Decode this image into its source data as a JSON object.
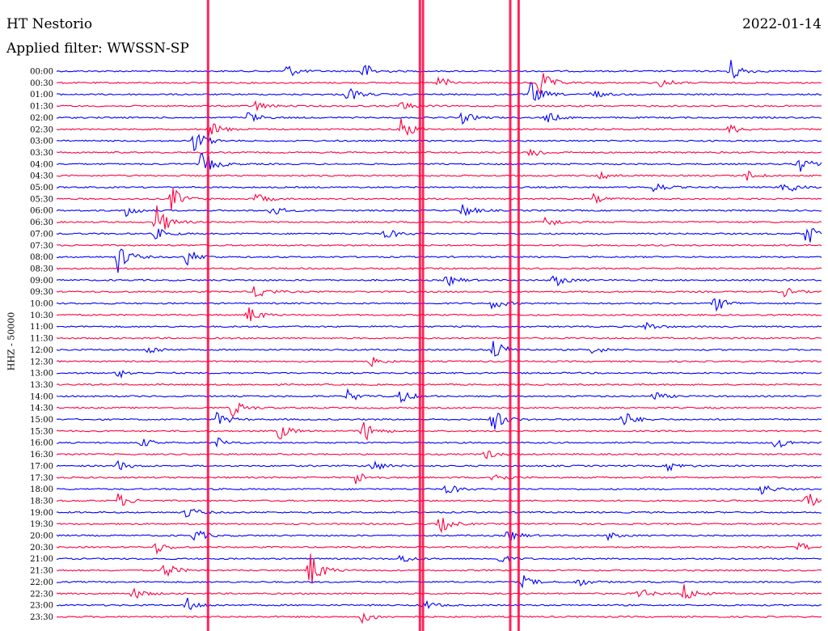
{
  "header": {
    "station": "HT Nestorio",
    "date": "2022-01-14",
    "filter": "Applied filter: WWSSN-SP"
  },
  "chart_data": {
    "type": "line",
    "title": "HT Nestorio",
    "subtitle": "Applied filter: WWSSN-SP",
    "ylabel": "HHZ - 50000",
    "rows": [
      "00:00",
      "00:30",
      "01:00",
      "01:30",
      "02:00",
      "02:30",
      "03:00",
      "03:30",
      "04:00",
      "04:30",
      "05:00",
      "05:30",
      "06:00",
      "06:30",
      "07:00",
      "07:30",
      "08:00",
      "08:30",
      "09:00",
      "09:30",
      "10:00",
      "10:30",
      "11:00",
      "11:30",
      "12:00",
      "12:30",
      "13:00",
      "13:30",
      "14:00",
      "14:30",
      "15:00",
      "15:30",
      "16:00",
      "16:30",
      "17:00",
      "17:30",
      "18:00",
      "18:30",
      "19:00",
      "19:30",
      "20:00",
      "20:30",
      "21:00",
      "21:30",
      "22:00",
      "22:30",
      "23:00",
      "23:30"
    ],
    "colors": {
      "odd": "#0000ff",
      "even": "#ff0040"
    },
    "events": [
      {
        "row": 0,
        "t": 0.3,
        "amp": 1.2
      },
      {
        "row": 0,
        "t": 0.4,
        "amp": 1.5
      },
      {
        "row": 0,
        "t": 0.88,
        "amp": 2.0
      },
      {
        "row": 1,
        "t": 0.5,
        "amp": 1.2
      },
      {
        "row": 1,
        "t": 0.63,
        "amp": 2.5
      },
      {
        "row": 1,
        "t": 0.79,
        "amp": 0.8
      },
      {
        "row": 2,
        "t": 0.38,
        "amp": 1.4
      },
      {
        "row": 2,
        "t": 0.62,
        "amp": 2.0
      },
      {
        "row": 2,
        "t": 0.7,
        "amp": 0.7
      },
      {
        "row": 3,
        "t": 0.26,
        "amp": 0.8
      },
      {
        "row": 3,
        "t": 0.45,
        "amp": 0.8
      },
      {
        "row": 4,
        "t": 0.25,
        "amp": 1.0
      },
      {
        "row": 4,
        "t": 0.53,
        "amp": 1.0
      },
      {
        "row": 4,
        "t": 0.64,
        "amp": 1.0
      },
      {
        "row": 5,
        "t": 0.2,
        "amp": 1.5
      },
      {
        "row": 5,
        "t": 0.45,
        "amp": 2.0
      },
      {
        "row": 5,
        "t": 0.88,
        "amp": 0.8
      },
      {
        "row": 6,
        "t": 0.18,
        "amp": 2.0
      },
      {
        "row": 7,
        "t": 0.62,
        "amp": 1.0
      },
      {
        "row": 8,
        "t": 0.19,
        "amp": 2.5
      },
      {
        "row": 8,
        "t": 0.97,
        "amp": 1.5
      },
      {
        "row": 9,
        "t": 0.71,
        "amp": 0.8
      },
      {
        "row": 9,
        "t": 0.9,
        "amp": 1.0
      },
      {
        "row": 10,
        "t": 0.78,
        "amp": 1.0
      },
      {
        "row": 10,
        "t": 0.95,
        "amp": 1.5
      },
      {
        "row": 11,
        "t": 0.15,
        "amp": 2.0
      },
      {
        "row": 11,
        "t": 0.26,
        "amp": 1.0
      },
      {
        "row": 11,
        "t": 0.7,
        "amp": 0.8
      },
      {
        "row": 12,
        "t": 0.09,
        "amp": 1.0
      },
      {
        "row": 12,
        "t": 0.28,
        "amp": 1.0
      },
      {
        "row": 12,
        "t": 0.53,
        "amp": 1.2
      },
      {
        "row": 13,
        "t": 0.13,
        "amp": 3.0
      },
      {
        "row": 13,
        "t": 0.64,
        "amp": 1.0
      },
      {
        "row": 14,
        "t": 0.13,
        "amp": 1.0
      },
      {
        "row": 14,
        "t": 0.43,
        "amp": 1.0
      },
      {
        "row": 14,
        "t": 0.98,
        "amp": 2.0
      },
      {
        "row": 16,
        "t": 0.08,
        "amp": 2.5
      },
      {
        "row": 16,
        "t": 0.17,
        "amp": 1.5
      },
      {
        "row": 18,
        "t": 0.51,
        "amp": 1.0
      },
      {
        "row": 18,
        "t": 0.65,
        "amp": 1.2
      },
      {
        "row": 19,
        "t": 0.26,
        "amp": 1.5
      },
      {
        "row": 19,
        "t": 0.95,
        "amp": 0.8
      },
      {
        "row": 20,
        "t": 0.57,
        "amp": 1.0
      },
      {
        "row": 20,
        "t": 0.86,
        "amp": 1.5
      },
      {
        "row": 21,
        "t": 0.25,
        "amp": 1.5
      },
      {
        "row": 22,
        "t": 0.77,
        "amp": 0.8
      },
      {
        "row": 24,
        "t": 0.12,
        "amp": 0.8
      },
      {
        "row": 24,
        "t": 0.57,
        "amp": 2.0
      },
      {
        "row": 24,
        "t": 0.7,
        "amp": 0.7
      },
      {
        "row": 25,
        "t": 0.41,
        "amp": 0.8
      },
      {
        "row": 26,
        "t": 0.08,
        "amp": 0.8
      },
      {
        "row": 28,
        "t": 0.38,
        "amp": 1.0
      },
      {
        "row": 28,
        "t": 0.78,
        "amp": 0.8
      },
      {
        "row": 28,
        "t": 0.45,
        "amp": 1.2
      },
      {
        "row": 29,
        "t": 0.23,
        "amp": 1.5
      },
      {
        "row": 30,
        "t": 0.21,
        "amp": 1.2
      },
      {
        "row": 30,
        "t": 0.57,
        "amp": 2.0
      },
      {
        "row": 30,
        "t": 0.74,
        "amp": 1.5
      },
      {
        "row": 31,
        "t": 0.29,
        "amp": 1.5
      },
      {
        "row": 31,
        "t": 0.4,
        "amp": 2.0
      },
      {
        "row": 32,
        "t": 0.11,
        "amp": 0.8
      },
      {
        "row": 32,
        "t": 0.21,
        "amp": 0.8
      },
      {
        "row": 32,
        "t": 0.94,
        "amp": 1.2
      },
      {
        "row": 33,
        "t": 0.56,
        "amp": 0.8
      },
      {
        "row": 34,
        "t": 0.08,
        "amp": 0.8
      },
      {
        "row": 34,
        "t": 0.41,
        "amp": 1.2
      },
      {
        "row": 34,
        "t": 0.8,
        "amp": 0.8
      },
      {
        "row": 35,
        "t": 0.39,
        "amp": 1.2
      },
      {
        "row": 35,
        "t": 0.57,
        "amp": 1.0
      },
      {
        "row": 36,
        "t": 0.51,
        "amp": 1.0
      },
      {
        "row": 36,
        "t": 0.92,
        "amp": 1.0
      },
      {
        "row": 37,
        "t": 0.08,
        "amp": 1.2
      },
      {
        "row": 37,
        "t": 0.98,
        "amp": 1.5
      },
      {
        "row": 38,
        "t": 0.17,
        "amp": 1.0
      },
      {
        "row": 39,
        "t": 0.5,
        "amp": 1.5
      },
      {
        "row": 40,
        "t": 0.18,
        "amp": 1.2
      },
      {
        "row": 40,
        "t": 0.59,
        "amp": 1.0
      },
      {
        "row": 40,
        "t": 0.72,
        "amp": 0.6
      },
      {
        "row": 41,
        "t": 0.13,
        "amp": 1.0
      },
      {
        "row": 41,
        "t": 0.97,
        "amp": 0.8
      },
      {
        "row": 42,
        "t": 0.45,
        "amp": 0.8
      },
      {
        "row": 42,
        "t": 0.58,
        "amp": 0.8
      },
      {
        "row": 43,
        "t": 0.14,
        "amp": 1.5
      },
      {
        "row": 43,
        "t": 0.33,
        "amp": 3.5
      },
      {
        "row": 44,
        "t": 0.61,
        "amp": 1.0
      },
      {
        "row": 44,
        "t": 0.68,
        "amp": 0.8
      },
      {
        "row": 45,
        "t": 0.1,
        "amp": 1.0
      },
      {
        "row": 45,
        "t": 0.76,
        "amp": 1.0
      },
      {
        "row": 45,
        "t": 0.82,
        "amp": 1.5
      },
      {
        "row": 46,
        "t": 0.17,
        "amp": 1.2
      },
      {
        "row": 46,
        "t": 0.48,
        "amp": 0.8
      },
      {
        "row": 47,
        "t": 0.4,
        "amp": 1.0
      }
    ],
    "spikes": [
      0.198,
      0.475,
      0.479,
      0.593,
      0.604
    ]
  }
}
